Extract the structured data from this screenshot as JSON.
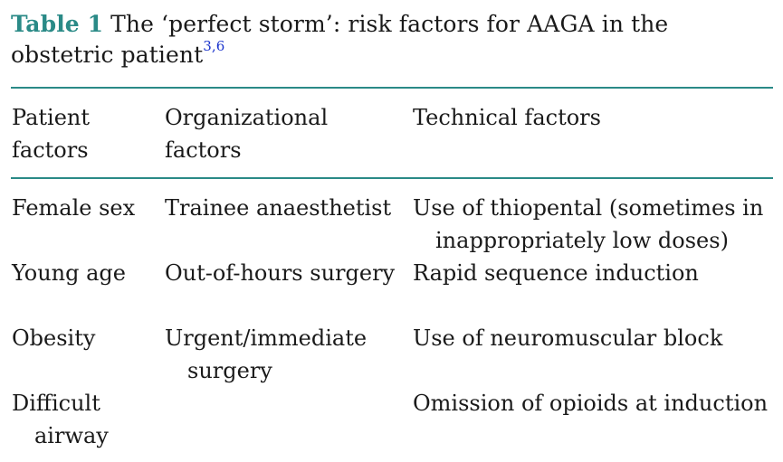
{
  "caption": {
    "label": "Table 1",
    "title": "The ‘perfect storm’: risk factors for AAGA in the obstetric patient",
    "refs": "3,6"
  },
  "table": {
    "headers": [
      "Patient factors",
      "Organizational factors",
      "Technical factors"
    ],
    "rows": [
      [
        "Female sex",
        "Trainee anaesthetist",
        "Use of thiopental (sometimes in inappropriately low doses)"
      ],
      [
        "Young age",
        "Out-of-hours surgery",
        "Rapid sequence induction"
      ],
      [
        "Obesity",
        "Urgent/immediate surgery",
        "Use of neuromuscular block"
      ],
      [
        "Difficult airway",
        "",
        "Omission of opioids at induction"
      ]
    ]
  },
  "colors": {
    "accent": "#2a8a87",
    "ref_link": "#1a33cc",
    "text": "#1a1a1a"
  }
}
